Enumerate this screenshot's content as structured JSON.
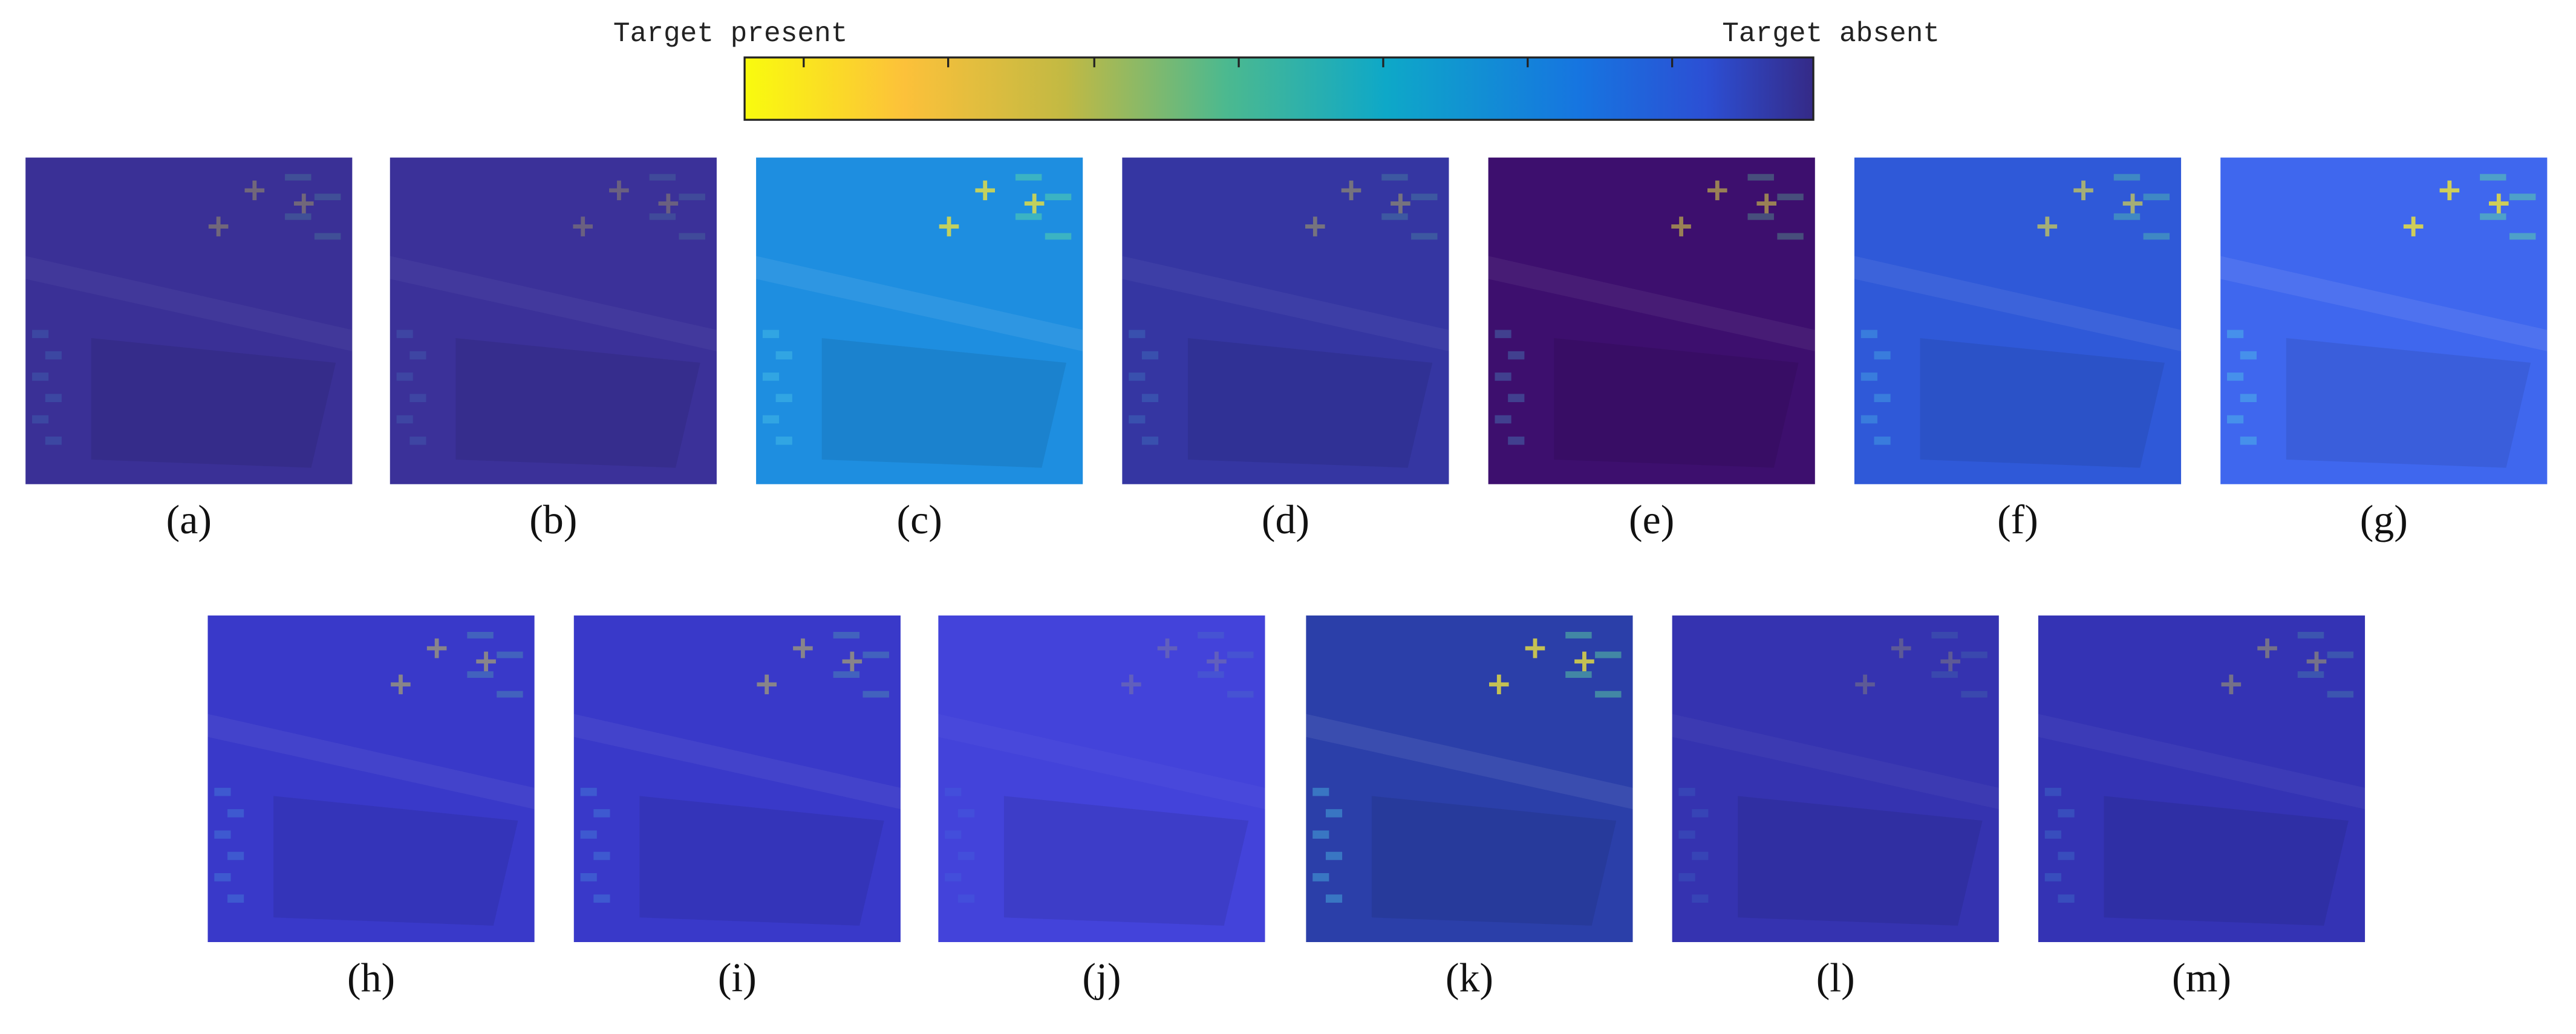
{
  "colorbar": {
    "left_label": "Target present",
    "right_label": "Target absent"
  },
  "panels": [
    {
      "label": "(a)"
    },
    {
      "label": "(b)"
    },
    {
      "label": "(c)"
    },
    {
      "label": "(d)"
    },
    {
      "label": "(e)"
    },
    {
      "label": "(f)"
    },
    {
      "label": "(g)"
    },
    {
      "label": "(h)"
    },
    {
      "label": "(i)"
    },
    {
      "label": "(j)"
    },
    {
      "label": "(k)"
    },
    {
      "label": "(l)"
    },
    {
      "label": "(m)"
    }
  ]
}
